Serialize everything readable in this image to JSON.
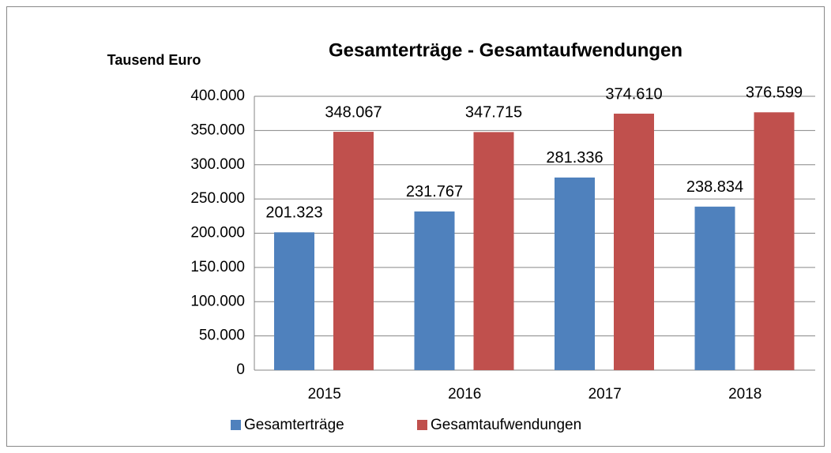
{
  "chart_data": {
    "type": "bar",
    "title": "Gesamterträge - Gesamtaufwendungen",
    "y_label": "Tausend Euro",
    "categories": [
      "2015",
      "2016",
      "2017",
      "2018"
    ],
    "series": [
      {
        "name": "Gesamterträge",
        "color": "#4f81bd",
        "values": [
          201323,
          231767,
          281336,
          238834
        ],
        "value_labels": [
          "201.323",
          "231.767",
          "281.336",
          "238.834"
        ]
      },
      {
        "name": "Gesamtaufwendungen",
        "color": "#c0504d",
        "values": [
          348067,
          347715,
          374610,
          376599
        ],
        "value_labels": [
          "348.067",
          "347.715",
          "374.610",
          "376.599"
        ]
      }
    ],
    "ylim": [
      0,
      400000
    ],
    "yticks": [
      0,
      {
        "value": 50000,
        "label": "50.000"
      },
      {
        "value": 100000,
        "label": "100.000"
      },
      {
        "value": 150000,
        "label": "150.000"
      },
      {
        "value": 200000,
        "label": "200.000"
      },
      {
        "value": 250000,
        "label": "250.000"
      },
      {
        "value": 300000,
        "label": "300.000"
      },
      {
        "value": 350000,
        "label": "350.000"
      },
      {
        "value": 400000,
        "label": "400.000"
      }
    ],
    "grid": true,
    "legend": "bottom"
  }
}
